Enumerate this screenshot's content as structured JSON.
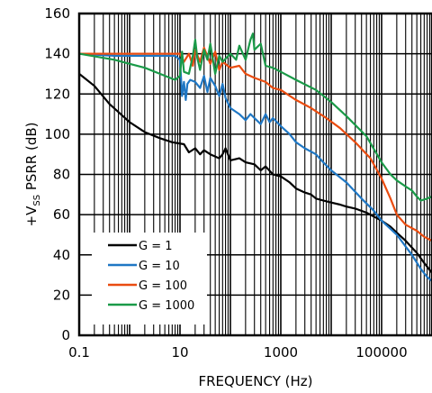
{
  "chart_data": {
    "type": "line",
    "x_scale": "log",
    "xlim": [
      0.1,
      1000000
    ],
    "ylim": [
      0,
      160
    ],
    "x_ticks": [
      0.1,
      10,
      1000,
      100000
    ],
    "x_tick_labels": [
      "0.1",
      "10",
      "1000",
      "100000"
    ],
    "y_ticks": [
      0,
      20,
      40,
      60,
      80,
      100,
      120,
      140,
      160
    ],
    "y_tick_labels": [
      "0",
      "20",
      "40",
      "60",
      "80",
      "100",
      "120",
      "140",
      "160"
    ],
    "xlabel": "FREQUENCY (Hz)",
    "ylabel": {
      "prefix": "+V",
      "sub": "SS",
      "suffix": " PSRR (dB)"
    },
    "grid": true,
    "legend_position": "bottom-left",
    "series": [
      {
        "name": "G = 1",
        "color": "#000000",
        "points": [
          [
            0.1,
            130
          ],
          [
            0.2,
            124
          ],
          [
            0.4,
            115
          ],
          [
            1,
            106
          ],
          [
            2,
            101
          ],
          [
            4,
            98
          ],
          [
            7,
            96
          ],
          [
            12,
            95
          ],
          [
            15,
            91
          ],
          [
            20,
            93
          ],
          [
            25,
            90
          ],
          [
            30,
            92
          ],
          [
            40,
            90
          ],
          [
            60,
            88
          ],
          [
            70,
            90
          ],
          [
            80,
            93
          ],
          [
            100,
            87
          ],
          [
            150,
            88
          ],
          [
            200,
            86
          ],
          [
            300,
            85
          ],
          [
            400,
            82
          ],
          [
            500,
            84
          ],
          [
            700,
            80
          ],
          [
            1000,
            79
          ],
          [
            1500,
            76
          ],
          [
            2000,
            73
          ],
          [
            3000,
            71
          ],
          [
            4000,
            70
          ],
          [
            5000,
            68
          ],
          [
            7000,
            67
          ],
          [
            10000,
            66
          ],
          [
            15000,
            65
          ],
          [
            20000,
            64
          ],
          [
            30000,
            63
          ],
          [
            50000,
            61
          ],
          [
            100000,
            57
          ],
          [
            150000,
            54
          ],
          [
            200000,
            51
          ],
          [
            300000,
            47
          ],
          [
            500000,
            41
          ],
          [
            700000,
            36
          ],
          [
            1000000,
            31
          ]
        ]
      },
      {
        "name": "G = 10",
        "color": "#1f77c4",
        "points": [
          [
            0.1,
            140
          ],
          [
            0.5,
            139
          ],
          [
            1,
            139
          ],
          [
            3,
            139
          ],
          [
            8,
            139
          ],
          [
            10,
            137
          ],
          [
            11,
            119
          ],
          [
            12,
            126
          ],
          [
            13,
            117
          ],
          [
            14,
            125
          ],
          [
            16,
            127
          ],
          [
            20,
            126
          ],
          [
            25,
            123
          ],
          [
            30,
            129
          ],
          [
            35,
            121
          ],
          [
            40,
            128
          ],
          [
            50,
            124
          ],
          [
            60,
            119
          ],
          [
            70,
            125
          ],
          [
            80,
            118
          ],
          [
            100,
            113
          ],
          [
            150,
            110
          ],
          [
            200,
            107
          ],
          [
            250,
            110
          ],
          [
            300,
            108
          ],
          [
            400,
            105
          ],
          [
            500,
            110
          ],
          [
            600,
            106
          ],
          [
            700,
            108
          ],
          [
            1000,
            104
          ],
          [
            1500,
            100
          ],
          [
            2000,
            96
          ],
          [
            3000,
            93
          ],
          [
            5000,
            90
          ],
          [
            7000,
            86
          ],
          [
            10000,
            82
          ],
          [
            20000,
            76
          ],
          [
            40000,
            68
          ],
          [
            70000,
            62
          ],
          [
            100000,
            57
          ],
          [
            200000,
            50
          ],
          [
            400000,
            40
          ],
          [
            600000,
            33
          ],
          [
            800000,
            29
          ],
          [
            1000000,
            27
          ]
        ]
      },
      {
        "name": "G = 100",
        "color": "#ea4c10",
        "points": [
          [
            0.1,
            140
          ],
          [
            1,
            140
          ],
          [
            5,
            140
          ],
          [
            10,
            140
          ],
          [
            12,
            136
          ],
          [
            15,
            140
          ],
          [
            18,
            134
          ],
          [
            20,
            142
          ],
          [
            25,
            136
          ],
          [
            30,
            143
          ],
          [
            40,
            135
          ],
          [
            50,
            141
          ],
          [
            60,
            132
          ],
          [
            70,
            136
          ],
          [
            100,
            133
          ],
          [
            150,
            134
          ],
          [
            200,
            130
          ],
          [
            300,
            128
          ],
          [
            500,
            126
          ],
          [
            700,
            123
          ],
          [
            1000,
            122
          ],
          [
            2000,
            117
          ],
          [
            4000,
            113
          ],
          [
            8000,
            108
          ],
          [
            15000,
            103
          ],
          [
            30000,
            96
          ],
          [
            60000,
            88
          ],
          [
            100000,
            78
          ],
          [
            150000,
            68
          ],
          [
            200000,
            60
          ],
          [
            300000,
            55
          ],
          [
            500000,
            52
          ],
          [
            700000,
            49
          ],
          [
            1000000,
            47
          ]
        ]
      },
      {
        "name": "G = 1000",
        "color": "#1a9a48",
        "points": [
          [
            0.1,
            140
          ],
          [
            0.5,
            137
          ],
          [
            1,
            135
          ],
          [
            2,
            133
          ],
          [
            4,
            130
          ],
          [
            8,
            127
          ],
          [
            10,
            129
          ],
          [
            11,
            141
          ],
          [
            12,
            131
          ],
          [
            15,
            130
          ],
          [
            18,
            139
          ],
          [
            20,
            147
          ],
          [
            22,
            138
          ],
          [
            25,
            132
          ],
          [
            30,
            142
          ],
          [
            35,
            137
          ],
          [
            40,
            145
          ],
          [
            50,
            130
          ],
          [
            60,
            139
          ],
          [
            70,
            136
          ],
          [
            100,
            140
          ],
          [
            130,
            137
          ],
          [
            150,
            144
          ],
          [
            200,
            137
          ],
          [
            250,
            147
          ],
          [
            280,
            150
          ],
          [
            300,
            142
          ],
          [
            400,
            145
          ],
          [
            500,
            134
          ],
          [
            700,
            133
          ],
          [
            1000,
            131
          ],
          [
            2000,
            127
          ],
          [
            5000,
            122
          ],
          [
            10000,
            116
          ],
          [
            20000,
            109
          ],
          [
            50000,
            99
          ],
          [
            100000,
            86
          ],
          [
            150000,
            80
          ],
          [
            200000,
            77
          ],
          [
            300000,
            74
          ],
          [
            400000,
            72
          ],
          [
            500000,
            69
          ],
          [
            600000,
            67
          ],
          [
            800000,
            68
          ],
          [
            1000000,
            69
          ]
        ]
      }
    ]
  }
}
